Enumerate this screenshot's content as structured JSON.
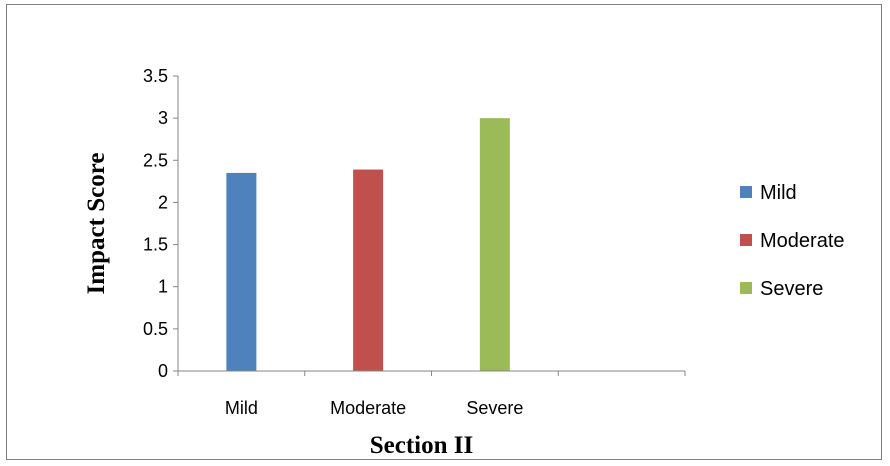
{
  "chart_data": {
    "type": "bar",
    "title": "",
    "xlabel": "Section II",
    "ylabel": "Impact Score",
    "categories": [
      "Mild",
      "Moderate",
      "Severe",
      ""
    ],
    "series": [
      {
        "name": "Mild",
        "color": "#4f81bd",
        "values": [
          2.35,
          null,
          null,
          null
        ]
      },
      {
        "name": "Moderate",
        "color": "#c0504d",
        "values": [
          null,
          2.39,
          null,
          null
        ]
      },
      {
        "name": "Severe",
        "color": "#9bbb59",
        "values": [
          null,
          null,
          3.0,
          null
        ]
      }
    ],
    "ylim": [
      0,
      3.5
    ],
    "yticks": [
      "0",
      "0.5",
      "1",
      "1.5",
      "2",
      "2.5",
      "3",
      "3.5"
    ],
    "grid": false,
    "legend": "right"
  }
}
